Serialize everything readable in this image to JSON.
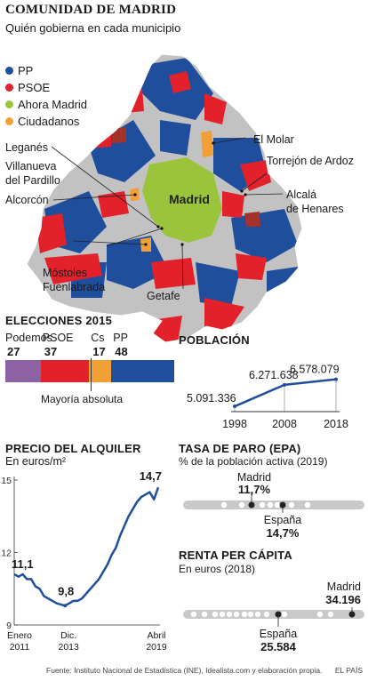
{
  "header": {
    "title": "COMUNIDAD DE MADRID",
    "subtitle": "Quién gobierna en cada municipio"
  },
  "colors": {
    "pp": "#1f4e9c",
    "psoe": "#e2212b",
    "ahora_madrid": "#9bc43d",
    "ciudadanos": "#f2a036",
    "podemos": "#8e63a6",
    "gray": "#b9b9b9",
    "line": "#1f4e9c"
  },
  "map": {
    "legend": [
      {
        "label": "PP",
        "color": "#1f4e9c"
      },
      {
        "label": "PSOE",
        "color": "#e2212b"
      },
      {
        "label": "Ahora Madrid",
        "color": "#9bc43d"
      },
      {
        "label": "Ciudadanos",
        "color": "#f2a036"
      }
    ],
    "labels": {
      "leganes": "Leganés",
      "villanueva1": "Villanueva",
      "villanueva2": "del Pardillo",
      "alcorcon": "Alcorcón",
      "el_molar": "El Molar",
      "torrejon": "Torrejón de Ardoz",
      "alcala1": "Alcalá",
      "alcala2": "de Henares",
      "madrid": "Madrid",
      "mostoles": "Móstoles",
      "fuenlabrada": "Fuenlabrada",
      "getafe": "Getafe"
    }
  },
  "elections": {
    "title": "ELECCIONES 2015",
    "parties": [
      {
        "name": "Podemos",
        "seats": 27,
        "color": "#8e63a6"
      },
      {
        "name": "PSOE",
        "seats": 37,
        "color": "#e2212b"
      },
      {
        "name": "Cs",
        "seats": 17,
        "color": "#f2a036"
      },
      {
        "name": "PP",
        "seats": 48,
        "color": "#1f4e9c"
      }
    ],
    "majority_label": "Mayoría absoluta"
  },
  "population": {
    "title": "POBLACIÓN",
    "values_text": [
      "5.091.336",
      "6.271.638",
      "6.578.079"
    ],
    "years": [
      "1998",
      "2008",
      "2018"
    ]
  },
  "rent": {
    "title": "PRECIO DEL ALQUILER",
    "unit": "En euros/m²",
    "start_label": "11,1",
    "min_label": "9,8",
    "end_label": "14,7",
    "x_labels": [
      [
        "Enero",
        "2011"
      ],
      [
        "Dic.",
        "2013"
      ],
      [
        "Abril",
        "2019"
      ]
    ]
  },
  "unemployment": {
    "title": "TASA DE PARO (EPA)",
    "unit": "% de la población activa (2019)",
    "madrid_label": "Madrid",
    "madrid_value": "11,7%",
    "spain_label": "España",
    "spain_value": "14,7%"
  },
  "income": {
    "title": "RENTA PER CÁPITA",
    "unit": "En euros (2018)",
    "madrid_label": "Madrid",
    "madrid_value": "34.196",
    "spain_label": "España",
    "spain_value": "25.584"
  },
  "footer": {
    "source": "Fuente: Instituto Nacional de Estadística (INE), Idealista.com y elaboración propia.",
    "brand": "EL PAÍS"
  },
  "chart_data": [
    {
      "type": "bar",
      "title": "ELECCIONES 2015",
      "categories": [
        "Podemos",
        "PSOE",
        "Cs",
        "PP"
      ],
      "values": [
        27,
        37,
        17,
        48
      ],
      "stacked": true,
      "annotation": "Mayoría absoluta",
      "majority_seats": 65
    },
    {
      "type": "line",
      "title": "POBLACIÓN",
      "x": [
        1998,
        2008,
        2018
      ],
      "values": [
        5091336,
        6271638,
        6578079
      ],
      "x_ticks": [
        "1998",
        "2008",
        "2018"
      ]
    },
    {
      "type": "line",
      "title": "PRECIO DEL ALQUILER",
      "ylabel": "En euros/m²",
      "ylim": [
        9,
        15
      ],
      "y_ticks": [
        9,
        12,
        15
      ],
      "x_ticks": [
        "Enero 2011",
        "Dic. 2013",
        "Abril 2019"
      ],
      "x": [
        "2011-01",
        "2011-04",
        "2011-07",
        "2011-10",
        "2012-01",
        "2012-04",
        "2012-07",
        "2012-10",
        "2013-01",
        "2013-04",
        "2013-07",
        "2013-10",
        "2013-12",
        "2014-03",
        "2014-06",
        "2014-09",
        "2014-12",
        "2015-03",
        "2015-06",
        "2015-09",
        "2015-12",
        "2016-03",
        "2016-06",
        "2016-09",
        "2016-12",
        "2017-03",
        "2017-06",
        "2017-09",
        "2017-12",
        "2018-03",
        "2018-06",
        "2018-09",
        "2018-12",
        "2019-02",
        "2019-04"
      ],
      "values": [
        11.1,
        11.0,
        11.1,
        10.9,
        10.9,
        10.6,
        10.5,
        10.2,
        10.1,
        10.0,
        9.9,
        9.85,
        9.8,
        9.9,
        10.0,
        10.0,
        10.1,
        10.3,
        10.5,
        10.7,
        10.9,
        11.2,
        11.5,
        11.9,
        12.2,
        12.7,
        13.1,
        13.5,
        13.8,
        14.1,
        14.3,
        14.4,
        14.5,
        14.2,
        14.7
      ]
    },
    {
      "type": "scatter",
      "title": "TASA DE PARO (EPA)",
      "ylabel": "% de la población activa (2019)",
      "highlight": [
        {
          "name": "Madrid",
          "value": 11.7
        },
        {
          "name": "España",
          "value": 14.7
        }
      ]
    },
    {
      "type": "scatter",
      "title": "RENTA PER CÁPITA",
      "ylabel": "En euros (2018)",
      "highlight": [
        {
          "name": "Madrid",
          "value": 34196
        },
        {
          "name": "España",
          "value": 25584
        }
      ]
    }
  ]
}
